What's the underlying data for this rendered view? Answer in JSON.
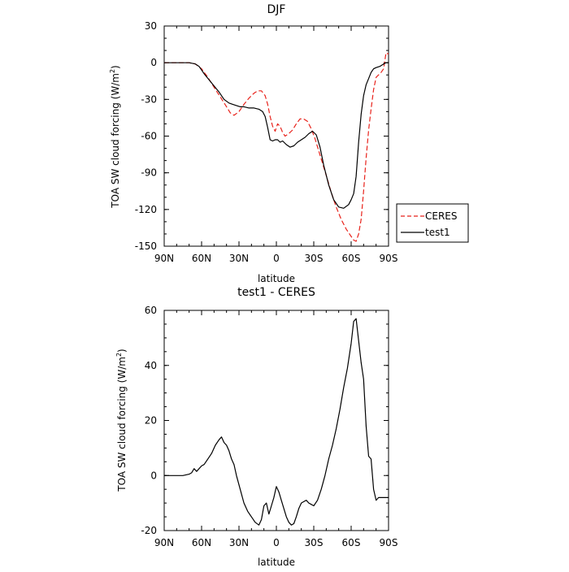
{
  "chart_data": [
    {
      "type": "line",
      "title": "DJF",
      "xlabel": "latitude",
      "ylabel": "TOA SW cloud forcing (W/m",
      "ylabel_sup": "2",
      "ylabel_tail": ")",
      "x_ticks": [
        -90,
        -60,
        -30,
        0,
        30,
        60,
        90
      ],
      "x_tick_labels": [
        "90N",
        "60N",
        "30N",
        "0",
        "30S",
        "60S",
        "90S"
      ],
      "xlim": [
        -90,
        90
      ],
      "ylim": [
        -150,
        30
      ],
      "y_ticks": [
        30,
        0,
        -30,
        -60,
        -90,
        -120,
        -150
      ],
      "y_tick_labels": [
        "30",
        "0",
        "-30",
        "-60",
        "-90",
        "-120",
        "-150"
      ],
      "grid": false,
      "legend_position": "right",
      "series": [
        {
          "name": "CERES",
          "color": "#e8221b",
          "dash": "dashed",
          "x": [
            -90,
            -70,
            -65,
            -60,
            -55,
            -50,
            -45,
            -40,
            -37,
            -34,
            -30,
            -26,
            -22,
            -18,
            -15,
            -12,
            -9,
            -7,
            -5,
            -3,
            -1,
            1,
            3,
            5,
            7,
            10,
            13,
            16,
            19,
            22,
            25,
            28,
            31,
            34,
            37,
            40,
            44,
            48,
            52,
            56,
            60,
            62,
            64,
            66,
            68,
            70,
            72,
            74,
            76,
            78,
            80,
            82,
            84,
            86,
            88,
            90
          ],
          "y": [
            0,
            0,
            -1,
            -5,
            -12,
            -20,
            -28,
            -36,
            -41,
            -43,
            -40,
            -34,
            -29,
            -25,
            -23,
            -23,
            -27,
            -34,
            -44,
            -52,
            -56,
            -50,
            -52,
            -57,
            -60,
            -58,
            -55,
            -50,
            -46,
            -46,
            -48,
            -54,
            -62,
            -72,
            -82,
            -92,
            -106,
            -118,
            -128,
            -136,
            -142,
            -145,
            -146,
            -140,
            -128,
            -105,
            -78,
            -55,
            -38,
            -22,
            -12,
            -10,
            -8,
            -5,
            8,
            7
          ]
        },
        {
          "name": "test1",
          "color": "#000000",
          "dash": "solid",
          "x": [
            -90,
            -70,
            -65,
            -62,
            -58,
            -54,
            -50,
            -46,
            -42,
            -38,
            -35,
            -32,
            -29,
            -26,
            -22,
            -18,
            -14,
            -11,
            -9,
            -7,
            -5,
            -3,
            -1,
            1,
            3,
            5,
            8,
            11,
            14,
            17,
            20,
            23,
            26,
            29,
            32,
            35,
            38,
            42,
            46,
            50,
            54,
            58,
            60,
            62,
            64,
            66,
            68,
            70,
            72,
            74,
            76,
            78,
            80,
            83,
            86,
            88,
            90
          ],
          "y": [
            0,
            0,
            -1,
            -3,
            -9,
            -14,
            -19,
            -24,
            -30,
            -33,
            -34,
            -35,
            -36,
            -36,
            -37,
            -37,
            -38,
            -40,
            -44,
            -53,
            -63,
            -64,
            -63,
            -63,
            -65,
            -64,
            -67,
            -69,
            -68,
            -65,
            -63,
            -61,
            -58,
            -56,
            -59,
            -69,
            -84,
            -100,
            -112,
            -118,
            -119,
            -116,
            -112,
            -107,
            -93,
            -65,
            -42,
            -27,
            -18,
            -13,
            -8,
            -5,
            -4,
            -3,
            -1,
            0,
            0
          ]
        }
      ]
    },
    {
      "type": "line",
      "title": "test1 - CERES",
      "xlabel": "latitude",
      "ylabel": "TOA SW cloud forcing (W/m",
      "ylabel_sup": "2",
      "ylabel_tail": ")",
      "x_ticks": [
        -90,
        -60,
        -30,
        0,
        30,
        60,
        90
      ],
      "x_tick_labels": [
        "90N",
        "60N",
        "30N",
        "0",
        "30S",
        "60S",
        "90S"
      ],
      "xlim": [
        -90,
        90
      ],
      "ylim": [
        -20,
        60
      ],
      "y_ticks": [
        60,
        40,
        20,
        0,
        -20
      ],
      "y_tick_labels": [
        "60",
        "40",
        "20",
        "0",
        "-20"
      ],
      "grid": false,
      "series": [
        {
          "color": "#000000",
          "dash": "solid",
          "x": [
            -90,
            -80,
            -75,
            -70,
            -68,
            -66,
            -64,
            -62,
            -60,
            -58,
            -55,
            -52,
            -49,
            -46,
            -44,
            -42,
            -40,
            -38,
            -36,
            -34,
            -32,
            -29,
            -26,
            -23,
            -20,
            -17,
            -14,
            -12,
            -10,
            -8,
            -6,
            -4,
            -2,
            0,
            2,
            4,
            6,
            8,
            10,
            12,
            14,
            16,
            18,
            20,
            22,
            24,
            26,
            28,
            30,
            33,
            36,
            39,
            42,
            45,
            48,
            51,
            54,
            57,
            60,
            62,
            64,
            66,
            68,
            70,
            72,
            74,
            76,
            78,
            80,
            82,
            84,
            86,
            88,
            90
          ],
          "y": [
            0,
            0,
            0,
            0.5,
            1,
            2.5,
            1.5,
            2.5,
            3.5,
            4,
            6,
            8,
            11,
            13,
            14,
            12,
            11,
            9,
            6,
            4,
            0,
            -5,
            -10,
            -13,
            -15,
            -17,
            -18,
            -16,
            -11,
            -10,
            -14,
            -11,
            -8,
            -4,
            -6,
            -9,
            -12,
            -15,
            -17,
            -18,
            -17.5,
            -15,
            -12,
            -10,
            -9.5,
            -9,
            -10,
            -10.5,
            -11,
            -9,
            -5,
            0,
            6,
            11,
            17,
            24,
            32,
            39,
            48,
            56,
            57,
            49,
            41,
            35,
            18,
            7,
            6,
            -5,
            -9,
            -8,
            -8,
            -8,
            -8,
            -8
          ]
        }
      ]
    }
  ]
}
